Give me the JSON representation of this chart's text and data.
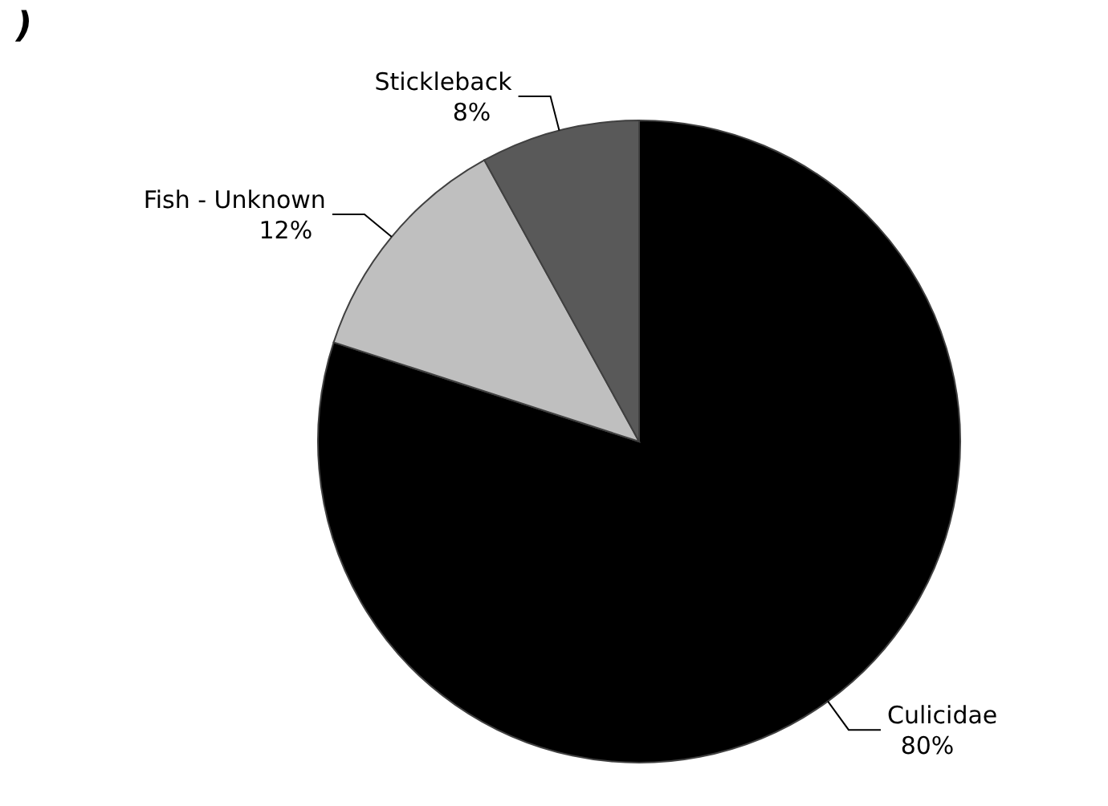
{
  "chart_data": {
    "type": "pie",
    "categories": [
      "Culicidae",
      "Fish - Unknown",
      "Stickleback"
    ],
    "values": [
      80,
      12,
      8
    ],
    "value_labels": [
      "80%",
      "12%",
      "8%"
    ],
    "colors": [
      "#000000",
      "#bfbfbf",
      "#595959"
    ],
    "annotations": [
      ")"
    ]
  }
}
